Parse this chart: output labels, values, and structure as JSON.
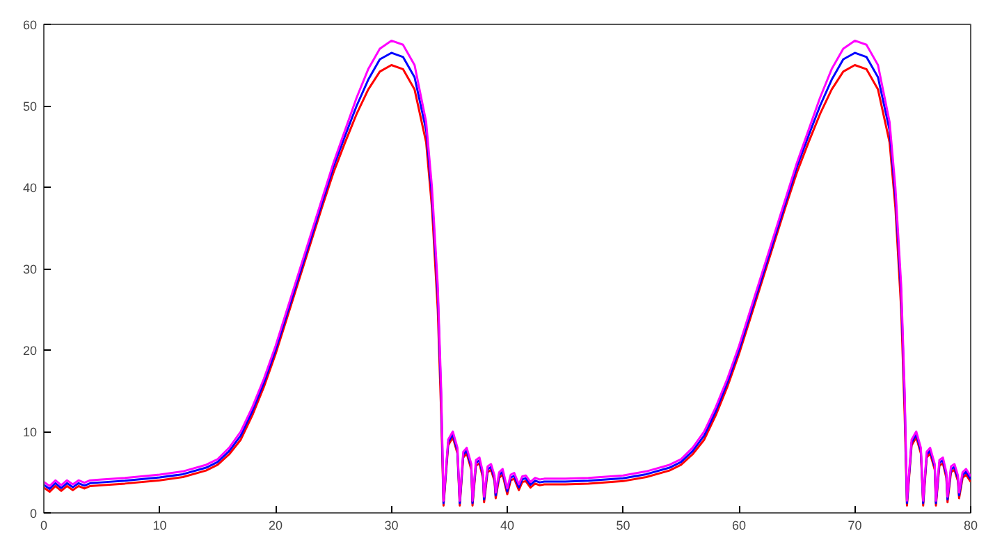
{
  "chart_data": {
    "type": "line",
    "xlim": [
      0,
      80
    ],
    "ylim": [
      0,
      60
    ],
    "xticks": [
      0,
      10,
      20,
      30,
      40,
      50,
      60,
      70,
      80
    ],
    "yticks": [
      0,
      10,
      20,
      30,
      40,
      50,
      60
    ],
    "grid": false,
    "line_style": "solid",
    "marker": "none",
    "x": [
      0,
      0.5,
      1,
      1.5,
      2,
      2.5,
      3,
      3.5,
      4,
      5,
      7,
      10,
      12,
      14,
      15,
      16,
      17,
      18,
      19,
      20,
      21,
      22,
      23,
      24,
      25,
      26,
      27,
      28,
      29,
      30,
      31,
      32,
      33,
      33.5,
      34,
      34.3,
      34.5,
      34.9,
      35.3,
      35.7,
      35.9,
      36.2,
      36.5,
      36.9,
      37.0,
      37.3,
      37.6,
      37.9,
      38.0,
      38.3,
      38.6,
      38.9,
      39.0,
      39.3,
      39.6,
      40.0,
      40.3,
      40.6,
      41.0,
      41.3,
      41.6,
      42,
      42.4,
      42.8,
      43.2,
      45,
      47,
      50,
      52,
      54,
      55,
      56,
      57,
      58,
      59,
      60,
      61,
      62,
      63,
      64,
      65,
      66,
      67,
      68,
      69,
      70,
      71,
      72,
      73,
      73.5,
      74,
      74.3,
      74.5,
      74.9,
      75.3,
      75.7,
      75.9,
      76.2,
      76.5,
      76.9,
      77.0,
      77.3,
      77.6,
      77.9,
      78.0,
      78.3,
      78.6,
      78.9,
      79.0,
      79.3,
      79.6,
      80
    ],
    "series": [
      {
        "color": "#ff0000",
        "values": [
          3.1,
          2.6,
          3.3,
          2.7,
          3.3,
          2.8,
          3.3,
          3.0,
          3.3,
          3.4,
          3.6,
          4.0,
          4.4,
          5.2,
          5.9,
          7.2,
          9,
          12,
          15.5,
          19.5,
          24,
          28.5,
          33,
          37.5,
          41.8,
          45.5,
          49,
          52,
          54.2,
          55,
          54.5,
          52,
          45.5,
          37.5,
          25,
          12,
          0.9,
          8.3,
          9.3,
          7.3,
          0.9,
          6.8,
          7.3,
          5.3,
          0.9,
          5.8,
          6.1,
          4.3,
          1.3,
          5.0,
          5.3,
          3.9,
          1.8,
          4.3,
          4.7,
          2.3,
          4.0,
          4.2,
          2.8,
          3.8,
          3.9,
          3.1,
          3.6,
          3.4,
          3.5,
          3.5,
          3.6,
          3.9,
          4.4,
          5.2,
          5.9,
          7.2,
          9,
          12,
          15.5,
          19.5,
          24,
          28.5,
          33,
          37.5,
          41.8,
          45.5,
          49,
          52,
          54.2,
          55,
          54.5,
          52,
          45.5,
          37.5,
          25,
          12,
          0.9,
          8.3,
          9.3,
          7.3,
          0.9,
          6.8,
          7.3,
          5.3,
          0.9,
          5.8,
          6.1,
          4.3,
          1.3,
          5.0,
          5.3,
          3.9,
          1.8,
          4.3,
          4.7,
          3.8
        ]
      },
      {
        "color": "#0000ff",
        "values": [
          3.45,
          2.95,
          3.65,
          3.05,
          3.65,
          3.15,
          3.65,
          3.35,
          3.65,
          3.75,
          3.95,
          4.35,
          4.75,
          5.55,
          6.25,
          7.6,
          9.5,
          12.5,
          16,
          20,
          24.5,
          29,
          33.5,
          38,
          42.5,
          46.3,
          50,
          53.2,
          55.7,
          56.5,
          56,
          53.5,
          47,
          39,
          27,
          14,
          1.2,
          8.65,
          9.65,
          7.65,
          1.2,
          7.15,
          7.65,
          5.65,
          1.2,
          6.15,
          6.45,
          4.65,
          1.65,
          5.35,
          5.65,
          4.25,
          2.15,
          4.65,
          5.05,
          2.65,
          4.35,
          4.55,
          3.15,
          4.15,
          4.25,
          3.45,
          3.95,
          3.75,
          3.85,
          3.85,
          3.95,
          4.25,
          4.75,
          5.55,
          6.25,
          7.6,
          9.5,
          12.5,
          16,
          20,
          24.5,
          29,
          33.5,
          38,
          42.5,
          46.3,
          50,
          53.2,
          55.7,
          56.5,
          56,
          53.5,
          47,
          39,
          27,
          14,
          1.2,
          8.65,
          9.65,
          7.65,
          1.2,
          7.15,
          7.65,
          5.65,
          1.2,
          6.15,
          6.45,
          4.65,
          1.65,
          5.35,
          5.65,
          4.25,
          2.15,
          4.65,
          5.05,
          4.15
        ]
      },
      {
        "color": "#ff00ff",
        "values": [
          3.8,
          3.3,
          4,
          3.4,
          4,
          3.5,
          4,
          3.7,
          4,
          4.1,
          4.3,
          4.7,
          5.1,
          5.9,
          6.6,
          8,
          10,
          13,
          16.5,
          20.5,
          25,
          29.5,
          34,
          38.5,
          43,
          47,
          51,
          54.5,
          57,
          58,
          57.5,
          55,
          48,
          40,
          28,
          15,
          1.5,
          9,
          10,
          8,
          1.5,
          7.5,
          8,
          6,
          1.5,
          6.5,
          6.8,
          5,
          2,
          5.7,
          6,
          4.6,
          2.5,
          5,
          5.4,
          3,
          4.7,
          4.9,
          3.5,
          4.5,
          4.6,
          3.8,
          4.3,
          4.1,
          4.2,
          4.2,
          4.3,
          4.6,
          5.1,
          5.9,
          6.6,
          8,
          10,
          13,
          16.5,
          20.5,
          25,
          29.5,
          34,
          38.5,
          43,
          47,
          51,
          54.5,
          57,
          58,
          57.5,
          55,
          48,
          40,
          28,
          15,
          1.5,
          9,
          10,
          8,
          1.5,
          7.5,
          8,
          6,
          1.5,
          6.5,
          6.8,
          5,
          2,
          5.7,
          6,
          4.6,
          2.5,
          5,
          5.4,
          4.5
        ]
      }
    ]
  }
}
